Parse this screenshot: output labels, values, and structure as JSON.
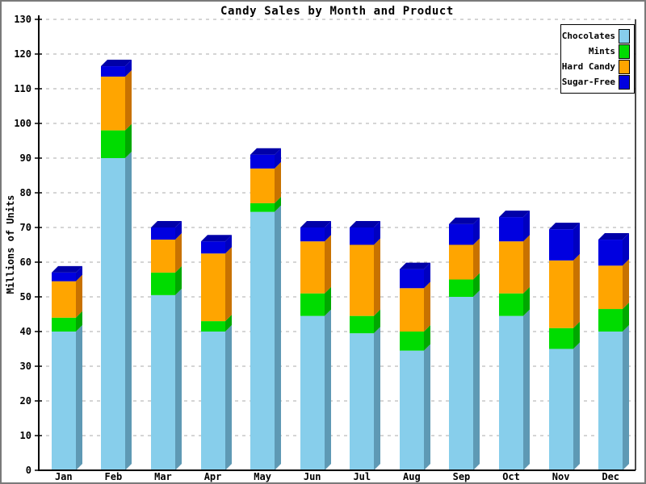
{
  "chart_data": {
    "type": "bar",
    "stacked": true,
    "style": "pseudo-3d stacked bars",
    "title": "Candy Sales by Month and Product",
    "ylabel": "Millions of Units",
    "xlabel": "",
    "ylim": [
      0,
      130
    ],
    "ytick_step": 10,
    "y_ticks": [
      0,
      10,
      20,
      30,
      40,
      50,
      60,
      70,
      80,
      90,
      100,
      110,
      120,
      130
    ],
    "grid": "horizontal dashed gray gridlines every 10 units",
    "legend_position": "top-right",
    "categories": [
      "Jan",
      "Feb",
      "Mar",
      "Apr",
      "May",
      "Jun",
      "Jul",
      "Aug",
      "Sep",
      "Oct",
      "Nov",
      "Dec"
    ],
    "series": [
      {
        "name": "Chocolates",
        "color": "#87CEEB",
        "side": "#5E99B4",
        "top": "#9ADCF5",
        "values": [
          40,
          90,
          50.5,
          40,
          74.5,
          44.5,
          39.5,
          34.5,
          50,
          44.5,
          35,
          40
        ]
      },
      {
        "name": "Mints",
        "color": "#00DC00",
        "side": "#00A800",
        "top": "#00F000",
        "values": [
          4,
          8,
          6.5,
          3,
          2.5,
          6.5,
          5,
          5.5,
          5,
          6.5,
          6,
          6.5
        ]
      },
      {
        "name": "Hard Candy",
        "color": "#FFA500",
        "side": "#C87200",
        "top": "#FFB733",
        "values": [
          10.5,
          15.5,
          9.5,
          19.5,
          10,
          15,
          20.5,
          12.5,
          10,
          15,
          19.5,
          12.5
        ]
      },
      {
        "name": "Sugar-Free",
        "color": "#0000E0",
        "side": "#0000C0",
        "top": "#0000A8",
        "values": [
          2.5,
          3,
          3.5,
          3.5,
          4,
          4,
          5,
          5.5,
          6,
          7,
          9,
          7.5
        ]
      }
    ],
    "totals": [
      57,
      116.5,
      70,
      66,
      91,
      70,
      70,
      58,
      71,
      73,
      69.5,
      66.5
    ],
    "axis_color": "#000000",
    "gridline_color": "#ababab"
  }
}
